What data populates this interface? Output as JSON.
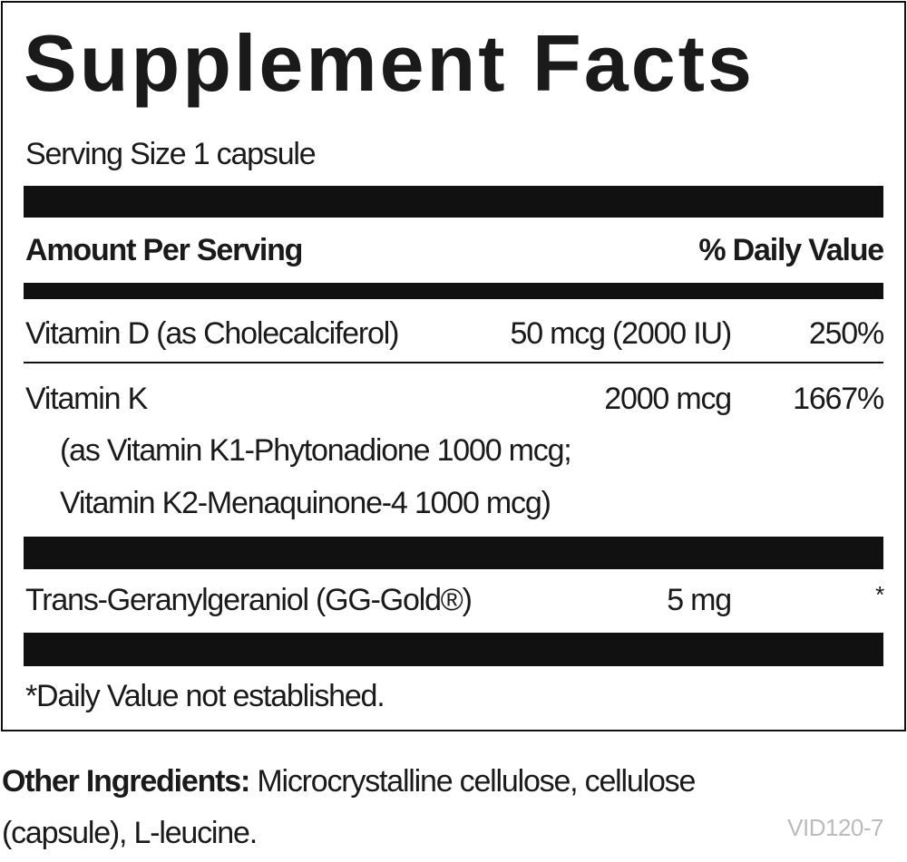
{
  "title": "Supplement Facts",
  "serving_size": "Serving Size 1 capsule",
  "header": {
    "amount": "Amount Per Serving",
    "daily_value": "% Daily Value"
  },
  "rows": [
    {
      "name": "Vitamin D (as Cholecalciferol)",
      "amount": "50 mcg (2000 IU)",
      "daily_value": "250%"
    },
    {
      "name": "Vitamin K",
      "amount": "2000 mcg",
      "daily_value": "1667%",
      "detail": [
        "(as Vitamin K1-Phytonadione 1000 mcg;",
        "Vitamin K2-Menaquinone-4 1000 mcg)"
      ]
    },
    {
      "name": "Trans-Geranylgeraniol (GG-Gold®)",
      "amount": "5 mg",
      "daily_value": "*"
    }
  ],
  "footnote": "*Daily Value not established.",
  "other_ingredients": {
    "label": "Other Ingredients:",
    "text": "Microcrystalline cellulose, cellulose (capsule), L-leucine."
  },
  "code": "VID120-7"
}
